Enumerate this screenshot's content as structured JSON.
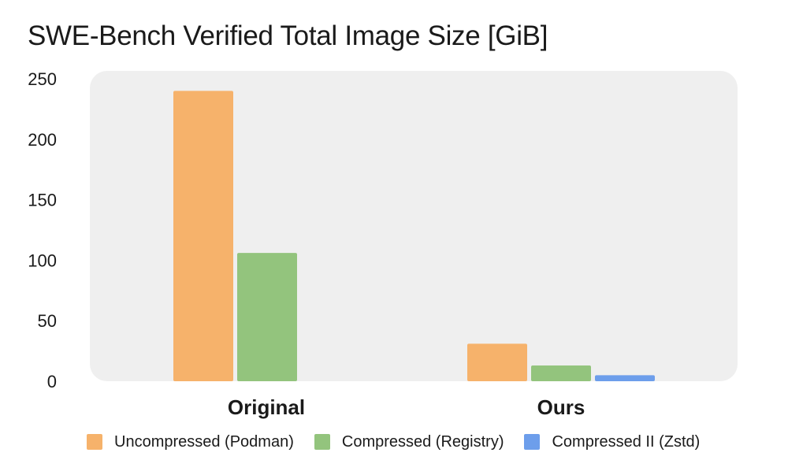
{
  "chart_data": {
    "type": "bar",
    "title": "SWE-Bench Verified Total Image Size [GiB]",
    "xlabel": "",
    "ylabel": "",
    "categories": [
      "Original",
      "Ours"
    ],
    "series": [
      {
        "name": "Uncompressed (Podman)",
        "color": "#f6b26b",
        "values": [
          240,
          31
        ]
      },
      {
        "name": "Compressed (Registry)",
        "color": "#93c47d",
        "values": [
          106,
          13
        ]
      },
      {
        "name": "Compressed II (Zstd)",
        "color": "#6d9eeb",
        "values": [
          null,
          5
        ]
      }
    ],
    "ylim": [
      0,
      250
    ],
    "yticks": [
      0,
      50,
      100,
      150,
      200,
      250
    ],
    "grid": false,
    "plot_background": "#efefef",
    "legend_position": "bottom"
  }
}
